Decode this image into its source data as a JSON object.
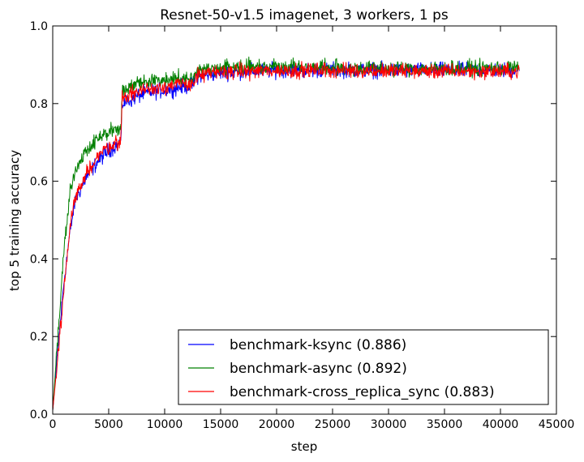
{
  "chart_data": {
    "type": "line",
    "title": "Resnet-50-v1.5 imagenet, 3 workers, 1 ps",
    "xlabel": "step",
    "ylabel": "top 5 training accuracy",
    "xlim": [
      0,
      45000
    ],
    "ylim": [
      0.0,
      1.0
    ],
    "xticks": [
      0,
      5000,
      10000,
      15000,
      20000,
      25000,
      30000,
      35000,
      40000,
      45000
    ],
    "xtick_labels": [
      "0",
      "5000",
      "10000",
      "15000",
      "20000",
      "25000",
      "30000",
      "35000",
      "40000",
      "45000"
    ],
    "yticks": [
      0.0,
      0.2,
      0.4,
      0.6,
      0.8,
      1.0
    ],
    "ytick_labels": [
      "0.0",
      "0.2",
      "0.4",
      "0.6",
      "0.8",
      "1.0"
    ],
    "grid": false,
    "legend_position": "bottom-right",
    "series": [
      {
        "name": "benchmark-ksync (0.886)",
        "color": "#0000ff",
        "noise": 0.012,
        "points": [
          [
            0,
            0.01
          ],
          [
            500,
            0.18
          ],
          [
            1000,
            0.34
          ],
          [
            1500,
            0.46
          ],
          [
            2000,
            0.55
          ],
          [
            3000,
            0.61
          ],
          [
            4000,
            0.65
          ],
          [
            5000,
            0.68
          ],
          [
            6100,
            0.7
          ],
          [
            6200,
            0.8
          ],
          [
            7000,
            0.81
          ],
          [
            8000,
            0.825
          ],
          [
            10000,
            0.835
          ],
          [
            12000,
            0.845
          ],
          [
            12600,
            0.85
          ],
          [
            12800,
            0.87
          ],
          [
            15000,
            0.88
          ],
          [
            20000,
            0.886
          ],
          [
            25000,
            0.887
          ],
          [
            30000,
            0.886
          ],
          [
            35000,
            0.886
          ],
          [
            40000,
            0.886
          ],
          [
            41700,
            0.886
          ]
        ]
      },
      {
        "name": "benchmark-async (0.892)",
        "color": "#008000",
        "noise": 0.012,
        "points": [
          [
            0,
            0.01
          ],
          [
            500,
            0.22
          ],
          [
            1000,
            0.42
          ],
          [
            1500,
            0.56
          ],
          [
            2000,
            0.63
          ],
          [
            3000,
            0.68
          ],
          [
            4000,
            0.71
          ],
          [
            5000,
            0.725
          ],
          [
            6100,
            0.735
          ],
          [
            6200,
            0.83
          ],
          [
            7000,
            0.845
          ],
          [
            8000,
            0.855
          ],
          [
            10000,
            0.862
          ],
          [
            12000,
            0.866
          ],
          [
            12600,
            0.87
          ],
          [
            12800,
            0.885
          ],
          [
            15000,
            0.893
          ],
          [
            20000,
            0.897
          ],
          [
            25000,
            0.892
          ],
          [
            30000,
            0.89
          ],
          [
            35000,
            0.89
          ],
          [
            40000,
            0.892
          ],
          [
            41700,
            0.892
          ]
        ]
      },
      {
        "name": "benchmark-cross_replica_sync (0.883)",
        "color": "#ff0000",
        "noise": 0.012,
        "points": [
          [
            0,
            0.01
          ],
          [
            500,
            0.16
          ],
          [
            1000,
            0.32
          ],
          [
            1500,
            0.47
          ],
          [
            2000,
            0.56
          ],
          [
            3000,
            0.62
          ],
          [
            4000,
            0.665
          ],
          [
            5000,
            0.69
          ],
          [
            6100,
            0.705
          ],
          [
            6200,
            0.815
          ],
          [
            7000,
            0.825
          ],
          [
            8000,
            0.835
          ],
          [
            10000,
            0.845
          ],
          [
            12000,
            0.85
          ],
          [
            12600,
            0.855
          ],
          [
            12800,
            0.87
          ],
          [
            15000,
            0.882
          ],
          [
            20000,
            0.885
          ],
          [
            25000,
            0.886
          ],
          [
            30000,
            0.884
          ],
          [
            35000,
            0.883
          ],
          [
            40000,
            0.883
          ],
          [
            41700,
            0.883
          ]
        ]
      }
    ]
  }
}
